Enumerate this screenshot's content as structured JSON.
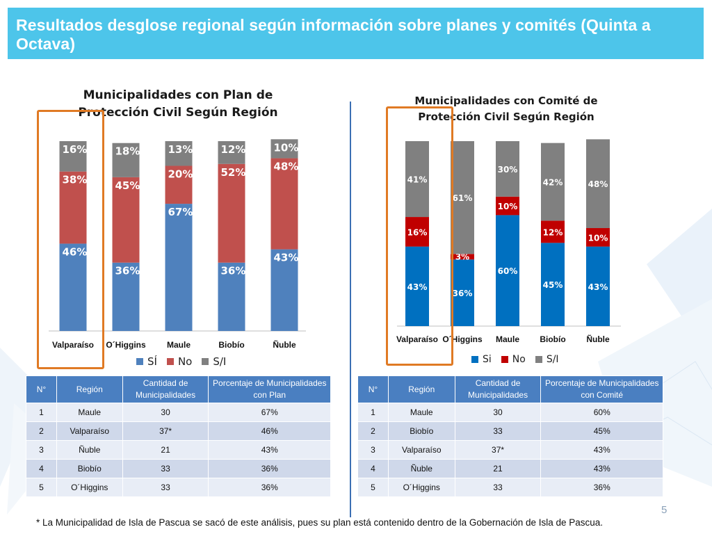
{
  "header": {
    "title": "Resultados desglose regional según información sobre planes y comités (Quinta a Octava)"
  },
  "colors": {
    "si_left": "#4f81bd",
    "no_left": "#c0504d",
    "si_right": "#0070c0",
    "no_right": "#c00000",
    "sl": "#808080",
    "header_bg": "#4dc5ea",
    "orange": "#e07a24"
  },
  "chart_data": [
    {
      "type": "bar",
      "stacked": true,
      "title_lines": [
        "Municipalidades con Plan de",
        "Protección Civil Según Región"
      ],
      "categories": [
        "Valparaíso",
        "O´Higgins",
        "Maule",
        "Biobío",
        "Ñuble"
      ],
      "series": [
        {
          "name": "SÍ",
          "values": [
            46,
            36,
            67,
            36,
            43
          ],
          "labels": [
            "46%",
            "36%",
            "67%",
            "36%",
            "43%"
          ]
        },
        {
          "name": "No",
          "values": [
            38,
            45,
            20,
            52,
            48
          ],
          "labels": [
            "38%",
            "45%",
            "20%",
            "52%",
            "48%"
          ]
        },
        {
          "name": "S/I",
          "values": [
            16,
            18,
            13,
            12,
            10
          ],
          "labels": [
            "16%",
            "18%",
            "13%",
            "12%",
            "10%"
          ]
        }
      ],
      "legend": [
        "SÍ",
        "No",
        "S/I"
      ],
      "legend_position": "bottom",
      "ylim": [
        0,
        100
      ]
    },
    {
      "type": "bar",
      "stacked": true,
      "title_lines": [
        "Municipalidades con Comité de",
        "Protección Civil Según Región"
      ],
      "categories": [
        "Valparaíso",
        "O´Higgins",
        "Maule",
        "Biobío",
        "Ñuble"
      ],
      "series": [
        {
          "name": "Si",
          "values": [
            43,
            36,
            60,
            45,
            43
          ],
          "labels": [
            "43%",
            "36%",
            "60%",
            "45%",
            "43%"
          ]
        },
        {
          "name": "No",
          "values": [
            16,
            3,
            10,
            12,
            10
          ],
          "labels": [
            "16%",
            "3%",
            "10%",
            "12%",
            "10%"
          ]
        },
        {
          "name": "S/I",
          "values": [
            41,
            61,
            30,
            42,
            48
          ],
          "labels": [
            "41%",
            "61%",
            "30%",
            "42%",
            "48%"
          ]
        }
      ],
      "legend": [
        "Si",
        "No",
        "S/I"
      ],
      "legend_position": "bottom",
      "ylim": [
        0,
        100
      ]
    }
  ],
  "table_left": {
    "headers": [
      "N°",
      "Región",
      "Cantidad de Municipalidades",
      "Porcentaje de Municipalidades con Plan"
    ],
    "rows": [
      [
        "1",
        "Maule",
        "30",
        "67%"
      ],
      [
        "2",
        "Valparaíso",
        "37*",
        "46%"
      ],
      [
        "3",
        "Ñuble",
        "21",
        "43%"
      ],
      [
        "4",
        "Biobío",
        "33",
        "36%"
      ],
      [
        "5",
        "O´Higgins",
        "33",
        "36%"
      ]
    ]
  },
  "table_right": {
    "headers": [
      "N°",
      "Región",
      "Cantidad de Municipalidades",
      "Porcentaje de Municipalidades con Comité"
    ],
    "rows": [
      [
        "1",
        "Maule",
        "30",
        "60%"
      ],
      [
        "2",
        "Biobío",
        "33",
        "45%"
      ],
      [
        "3",
        "Valparaíso",
        "37*",
        "43%"
      ],
      [
        "4",
        "Ñuble",
        "21",
        "43%"
      ],
      [
        "5",
        "O´Higgins",
        "33",
        "36%"
      ]
    ]
  },
  "footnote": "* La Municipalidad de Isla de Pascua se sacó de este análisis, pues su plan está contenido dentro de la Gobernación de Isla de Pascua.",
  "page_number": "5"
}
